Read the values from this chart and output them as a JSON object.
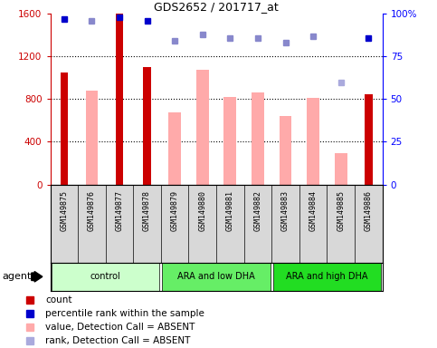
{
  "title": "GDS2652 / 201717_at",
  "samples": [
    "GSM149875",
    "GSM149876",
    "GSM149877",
    "GSM149878",
    "GSM149879",
    "GSM149880",
    "GSM149881",
    "GSM149882",
    "GSM149883",
    "GSM149884",
    "GSM149885",
    "GSM149886"
  ],
  "groups": [
    {
      "label": "control",
      "color": "#ccffcc",
      "start": 0,
      "end": 3
    },
    {
      "label": "ARA and low DHA",
      "color": "#66ee66",
      "start": 4,
      "end": 7
    },
    {
      "label": "ARA and high DHA",
      "color": "#22dd22",
      "start": 8,
      "end": 11
    }
  ],
  "count_values": [
    1050,
    null,
    1600,
    1100,
    null,
    null,
    null,
    null,
    null,
    null,
    null,
    850
  ],
  "value_absent": [
    null,
    880,
    null,
    null,
    680,
    1080,
    820,
    860,
    640,
    810,
    290,
    null
  ],
  "percentile_present": [
    97,
    null,
    98,
    96,
    null,
    null,
    null,
    null,
    null,
    null,
    null,
    86
  ],
  "percentile_absent": [
    null,
    96,
    null,
    null,
    84,
    88,
    86,
    86,
    83,
    87,
    null,
    null
  ],
  "rank_absent": [
    null,
    null,
    null,
    null,
    null,
    null,
    null,
    null,
    null,
    null,
    60,
    null
  ],
  "ylim_left": [
    0,
    1600
  ],
  "ylim_right": [
    0,
    100
  ],
  "yticks_left": [
    0,
    400,
    800,
    1200,
    1600
  ],
  "yticks_right": [
    0,
    25,
    50,
    75,
    100
  ],
  "ytick_labels_right": [
    "0",
    "25",
    "50",
    "75",
    "100%"
  ],
  "count_color": "#cc0000",
  "absent_value_color": "#ffaaaa",
  "percentile_present_color": "#0000cc",
  "percentile_absent_color": "#8888cc",
  "rank_absent_color": "#aaaadd",
  "sample_bg_color": "#d8d8d8",
  "grid_color": "#000000",
  "agent_label": "agent"
}
